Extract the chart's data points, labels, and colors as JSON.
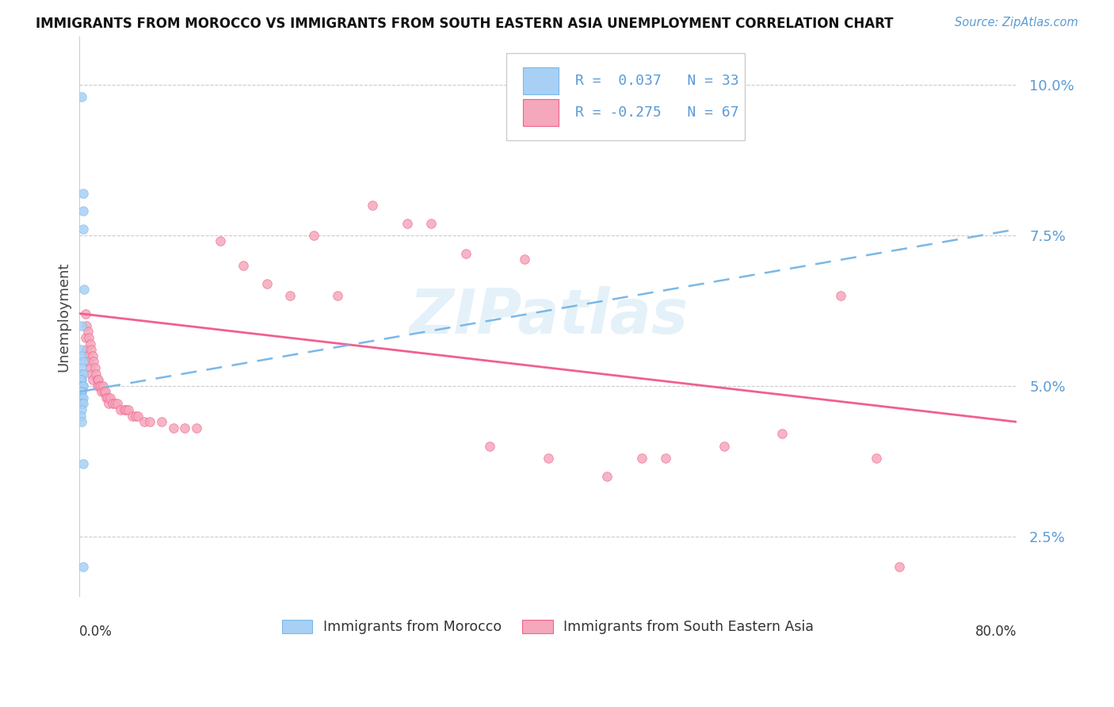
{
  "title": "IMMIGRANTS FROM MOROCCO VS IMMIGRANTS FROM SOUTH EASTERN ASIA UNEMPLOYMENT CORRELATION CHART",
  "source": "Source: ZipAtlas.com",
  "ylabel": "Unemployment",
  "ytick_labels": [
    "2.5%",
    "5.0%",
    "7.5%",
    "10.0%"
  ],
  "ytick_values": [
    0.025,
    0.05,
    0.075,
    0.1
  ],
  "xlim": [
    0.0,
    0.8
  ],
  "ylim": [
    0.015,
    0.108
  ],
  "watermark": "ZIPatlas",
  "morocco_color": "#a8d0f5",
  "sea_color": "#f5a8bb",
  "trendline_morocco_color": "#7ab8e8",
  "trendline_sea_color": "#f06090",
  "morocco_x": [
    0.002,
    0.003,
    0.003,
    0.003,
    0.004,
    0.002,
    0.001,
    0.002,
    0.003,
    0.002,
    0.002,
    0.003,
    0.002,
    0.001,
    0.003,
    0.001,
    0.002,
    0.002,
    0.003,
    0.002,
    0.002,
    0.001,
    0.002,
    0.002,
    0.003,
    0.001,
    0.002,
    0.003,
    0.002,
    0.001,
    0.002,
    0.003,
    0.003
  ],
  "morocco_y": [
    0.098,
    0.082,
    0.079,
    0.076,
    0.066,
    0.06,
    0.056,
    0.055,
    0.054,
    0.053,
    0.052,
    0.052,
    0.051,
    0.051,
    0.05,
    0.05,
    0.05,
    0.05,
    0.05,
    0.049,
    0.049,
    0.049,
    0.048,
    0.048,
    0.048,
    0.047,
    0.047,
    0.047,
    0.046,
    0.045,
    0.044,
    0.037,
    0.02
  ],
  "sea_x": [
    0.005,
    0.005,
    0.006,
    0.006,
    0.007,
    0.007,
    0.008,
    0.008,
    0.009,
    0.009,
    0.01,
    0.01,
    0.011,
    0.011,
    0.012,
    0.013,
    0.014,
    0.015,
    0.015,
    0.016,
    0.017,
    0.018,
    0.019,
    0.02,
    0.021,
    0.022,
    0.023,
    0.024,
    0.025,
    0.026,
    0.028,
    0.03,
    0.032,
    0.035,
    0.038,
    0.04,
    0.042,
    0.045,
    0.048,
    0.05,
    0.055,
    0.06,
    0.07,
    0.08,
    0.09,
    0.1,
    0.12,
    0.14,
    0.16,
    0.18,
    0.2,
    0.22,
    0.25,
    0.28,
    0.3,
    0.33,
    0.35,
    0.38,
    0.4,
    0.45,
    0.48,
    0.5,
    0.55,
    0.6,
    0.65,
    0.68,
    0.7
  ],
  "sea_y": [
    0.062,
    0.058,
    0.06,
    0.056,
    0.059,
    0.055,
    0.058,
    0.054,
    0.057,
    0.053,
    0.056,
    0.052,
    0.055,
    0.051,
    0.054,
    0.053,
    0.052,
    0.051,
    0.05,
    0.051,
    0.05,
    0.05,
    0.049,
    0.05,
    0.049,
    0.049,
    0.048,
    0.048,
    0.047,
    0.048,
    0.047,
    0.047,
    0.047,
    0.046,
    0.046,
    0.046,
    0.046,
    0.045,
    0.045,
    0.045,
    0.044,
    0.044,
    0.044,
    0.043,
    0.043,
    0.043,
    0.074,
    0.07,
    0.067,
    0.065,
    0.075,
    0.065,
    0.08,
    0.077,
    0.077,
    0.072,
    0.04,
    0.071,
    0.038,
    0.035,
    0.038,
    0.038,
    0.04,
    0.042,
    0.065,
    0.038,
    0.02
  ],
  "morocco_trend_x": [
    0.0,
    0.8
  ],
  "morocco_trend_y": [
    0.049,
    0.076
  ],
  "sea_trend_x": [
    0.0,
    0.8
  ],
  "sea_trend_y": [
    0.062,
    0.044
  ]
}
